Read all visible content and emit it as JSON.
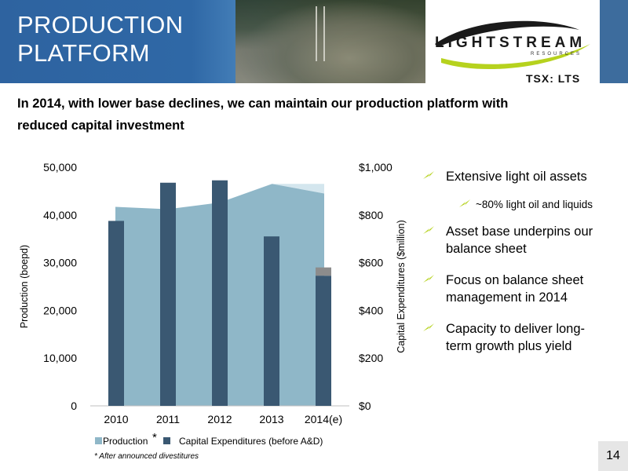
{
  "header": {
    "title_line1": "PRODUCTION",
    "title_line2": "PLATFORM",
    "logo_name": "LIGHTSTREAM",
    "logo_sub": "RESOURCES",
    "ticker": "TSX: LTS"
  },
  "subtitle_line1": "In 2014, with lower base declines, we can maintain our production platform with",
  "subtitle_line2": "reduced capital investment",
  "chart_data": {
    "type": "bar",
    "categories": [
      "2010",
      "2011",
      "2012",
      "2013",
      "2014(e)"
    ],
    "ylabel": "Production (boepd)",
    "y2label": "Capital Expenditures ($million)",
    "ylim": [
      0,
      50000
    ],
    "y2lim": [
      0,
      1000
    ],
    "yticks": [
      "50,000",
      "40,000",
      "30,000",
      "20,000",
      "10,000",
      "0"
    ],
    "y2ticks": [
      "$1,000",
      "$800",
      "$600",
      "$400",
      "$200",
      "$0"
    ],
    "series": [
      {
        "name": "Production",
        "type": "area",
        "axis": "left",
        "color": "#8fb7c8",
        "values": [
          41700,
          41200,
          42600,
          46500,
          44500
        ]
      },
      {
        "name": "Capital Expenditures (before A&D)",
        "type": "bar",
        "axis": "right",
        "color": "#3a5872",
        "values": [
          775,
          935,
          945,
          710,
          545
        ]
      }
    ],
    "divested_production_2014": 46500,
    "divested_capex_2014": 580,
    "legend_mark": "*",
    "legend_position": "bottom",
    "grid": false
  },
  "bullets": [
    {
      "text": "Extensive light oil assets",
      "level": 1
    },
    {
      "text": "~80% light oil and liquids",
      "level": 2
    },
    {
      "text": "Asset base underpins our balance sheet",
      "level": 1
    },
    {
      "text": "Focus on balance sheet management in 2014",
      "level": 1
    },
    {
      "text": "Capacity to deliver long-term growth plus yield",
      "level": 1
    }
  ],
  "bullet_lines": [
    [
      "Extensive light oil assets"
    ],
    [
      "~80% light oil and liquids"
    ],
    [
      "Asset base underpins our",
      "balance sheet"
    ],
    [
      "Focus on balance sheet",
      "management in 2014"
    ],
    [
      "Capacity to deliver long-",
      "term growth plus yield"
    ]
  ],
  "footnote": "* After announced divestitures",
  "page_number": "14",
  "colors": {
    "header_blue": "#2f68a6",
    "accent_green": "#b6d21e",
    "bar": "#3a5872",
    "area": "#8fb7c8"
  }
}
